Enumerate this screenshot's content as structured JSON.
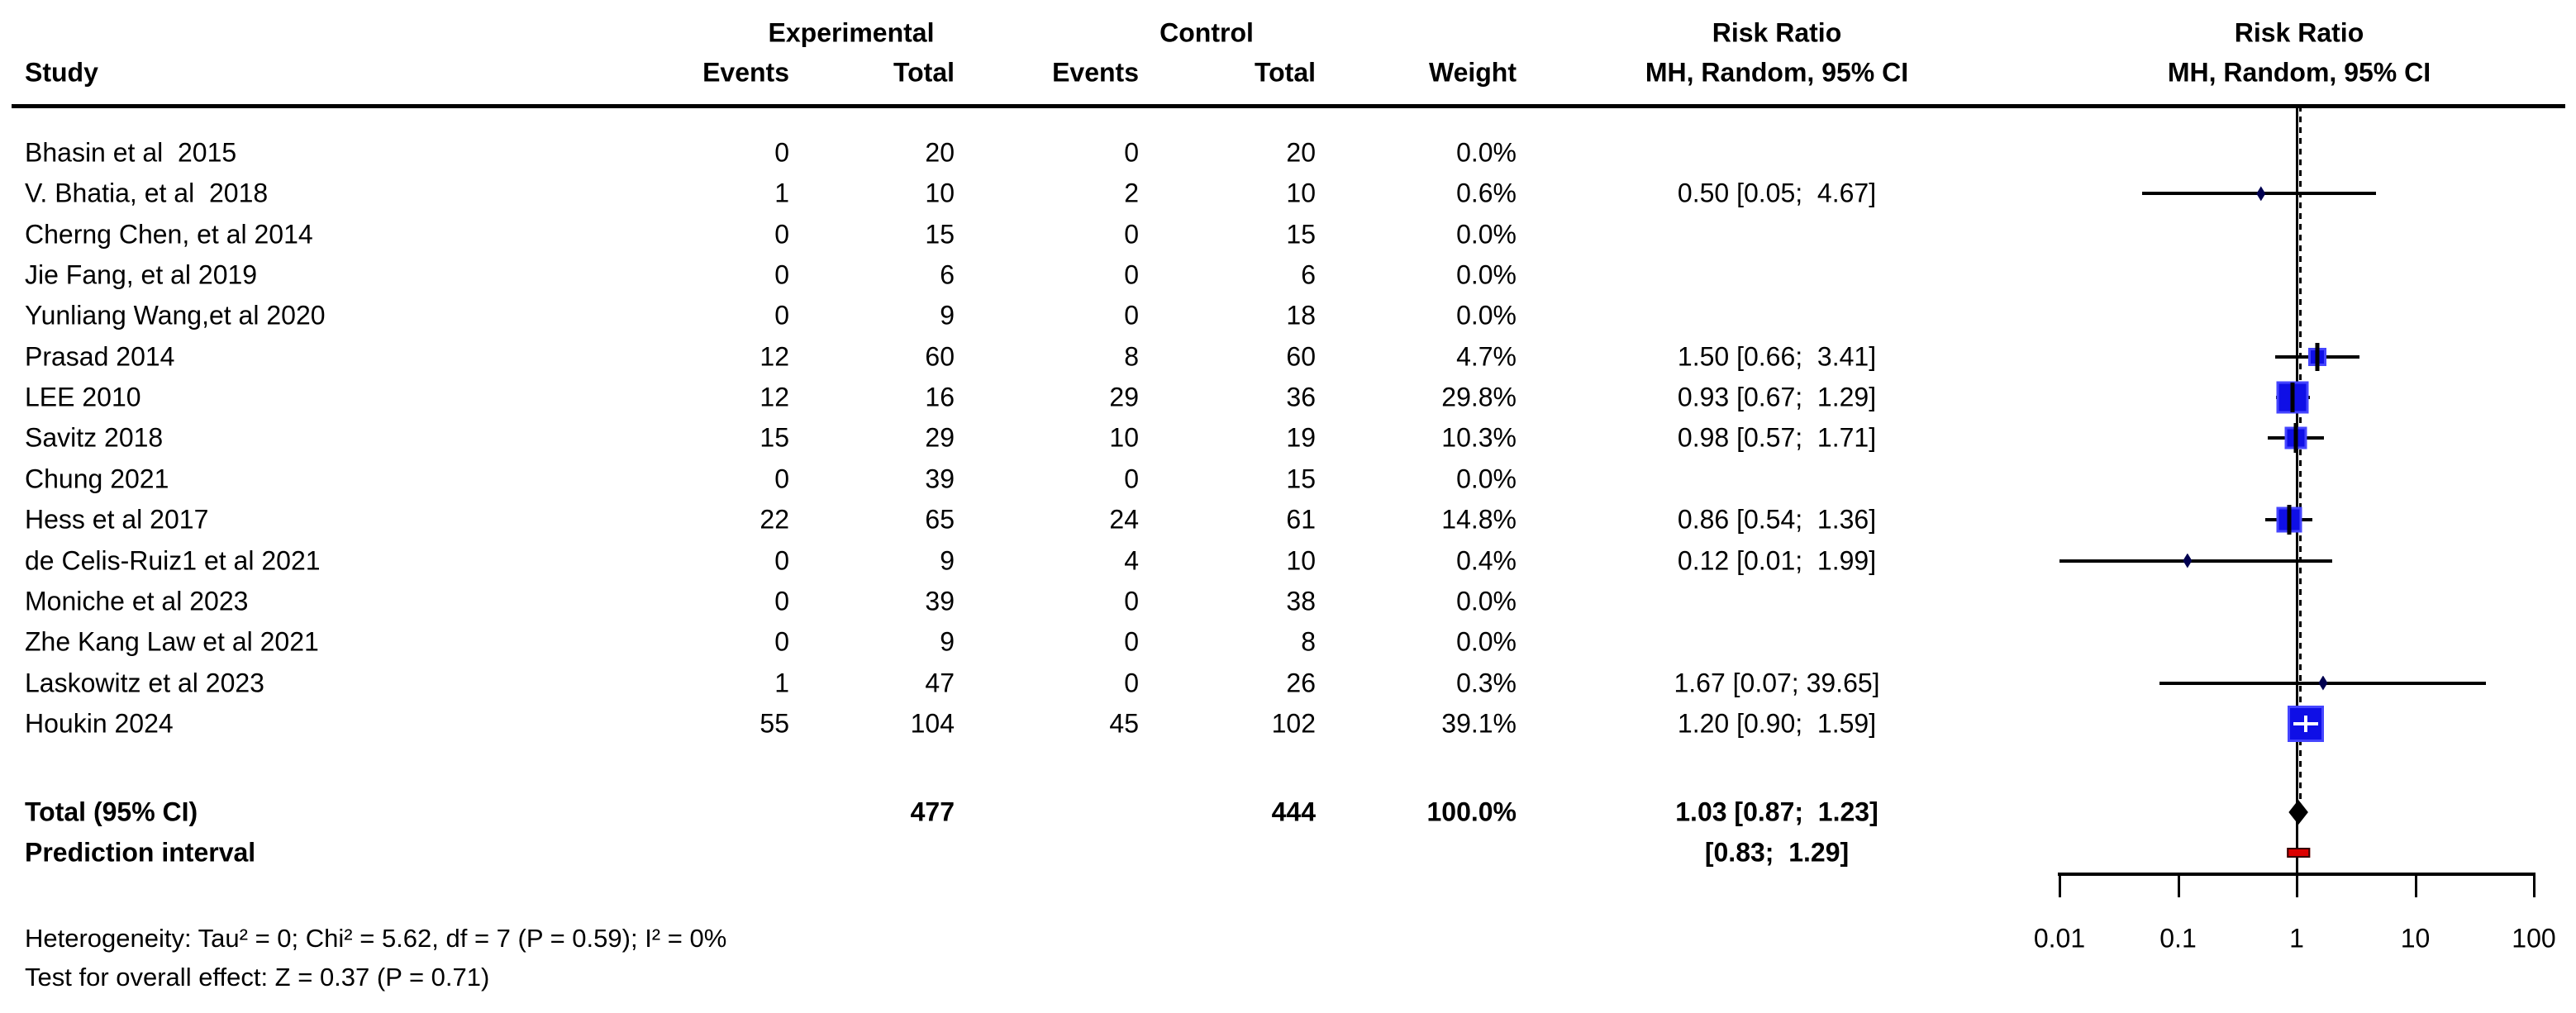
{
  "columns": {
    "study": "Study",
    "group_experimental": "Experimental",
    "group_control": "Control",
    "events": "Events",
    "total": "Total",
    "weight": "Weight",
    "risk_ratio_line1": "Risk Ratio",
    "risk_ratio_line2": "MH, Random, 95% CI"
  },
  "studies": [
    {
      "name": "Bhasin et al  2015",
      "exp_events": "0",
      "exp_total": "20",
      "ctrl_events": "0",
      "ctrl_total": "20",
      "weight": "0.0%",
      "weight_pct": 0.0,
      "rr_text": "",
      "rr": null,
      "ci_low": null,
      "ci_high": null
    },
    {
      "name": "V. Bhatia, et al  2018",
      "exp_events": "1",
      "exp_total": "10",
      "ctrl_events": "2",
      "ctrl_total": "10",
      "weight": "0.6%",
      "weight_pct": 0.6,
      "rr_text": "0.50 [0.05;  4.67]",
      "rr": 0.5,
      "ci_low": 0.05,
      "ci_high": 4.67
    },
    {
      "name": "Cherng Chen, et al 2014",
      "exp_events": "0",
      "exp_total": "15",
      "ctrl_events": "0",
      "ctrl_total": "15",
      "weight": "0.0%",
      "weight_pct": 0.0,
      "rr_text": "",
      "rr": null,
      "ci_low": null,
      "ci_high": null
    },
    {
      "name": "Jie Fang, et al 2019",
      "exp_events": "0",
      "exp_total": "6",
      "ctrl_events": "0",
      "ctrl_total": "6",
      "weight": "0.0%",
      "weight_pct": 0.0,
      "rr_text": "",
      "rr": null,
      "ci_low": null,
      "ci_high": null
    },
    {
      "name": "Yunliang Wang,et al 2020",
      "exp_events": "0",
      "exp_total": "9",
      "ctrl_events": "0",
      "ctrl_total": "18",
      "weight": "0.0%",
      "weight_pct": 0.0,
      "rr_text": "",
      "rr": null,
      "ci_low": null,
      "ci_high": null
    },
    {
      "name": "Prasad 2014",
      "exp_events": "12",
      "exp_total": "60",
      "ctrl_events": "8",
      "ctrl_total": "60",
      "weight": "4.7%",
      "weight_pct": 4.7,
      "rr_text": "1.50 [0.66;  3.41]",
      "rr": 1.5,
      "ci_low": 0.66,
      "ci_high": 3.41
    },
    {
      "name": "LEE 2010",
      "exp_events": "12",
      "exp_total": "16",
      "ctrl_events": "29",
      "ctrl_total": "36",
      "weight": "29.8%",
      "weight_pct": 29.8,
      "rr_text": "0.93 [0.67;  1.29]",
      "rr": 0.93,
      "ci_low": 0.67,
      "ci_high": 1.29
    },
    {
      "name": "Savitz 2018",
      "exp_events": "15",
      "exp_total": "29",
      "ctrl_events": "10",
      "ctrl_total": "19",
      "weight": "10.3%",
      "weight_pct": 10.3,
      "rr_text": "0.98 [0.57;  1.71]",
      "rr": 0.98,
      "ci_low": 0.57,
      "ci_high": 1.71
    },
    {
      "name": "Chung 2021",
      "exp_events": "0",
      "exp_total": "39",
      "ctrl_events": "0",
      "ctrl_total": "15",
      "weight": "0.0%",
      "weight_pct": 0.0,
      "rr_text": "",
      "rr": null,
      "ci_low": null,
      "ci_high": null
    },
    {
      "name": "Hess et al 2017",
      "exp_events": "22",
      "exp_total": "65",
      "ctrl_events": "24",
      "ctrl_total": "61",
      "weight": "14.8%",
      "weight_pct": 14.8,
      "rr_text": "0.86 [0.54;  1.36]",
      "rr": 0.86,
      "ci_low": 0.54,
      "ci_high": 1.36
    },
    {
      "name": "de Celis-Ruiz1 et al 2021",
      "exp_events": "0",
      "exp_total": "9",
      "ctrl_events": "4",
      "ctrl_total": "10",
      "weight": "0.4%",
      "weight_pct": 0.4,
      "rr_text": "0.12 [0.01;  1.99]",
      "rr": 0.12,
      "ci_low": 0.01,
      "ci_high": 1.99
    },
    {
      "name": "Moniche et al 2023",
      "exp_events": "0",
      "exp_total": "39",
      "ctrl_events": "0",
      "ctrl_total": "38",
      "weight": "0.0%",
      "weight_pct": 0.0,
      "rr_text": "",
      "rr": null,
      "ci_low": null,
      "ci_high": null
    },
    {
      "name": "Zhe Kang Law et al 2021",
      "exp_events": "0",
      "exp_total": "9",
      "ctrl_events": "0",
      "ctrl_total": "8",
      "weight": "0.0%",
      "weight_pct": 0.0,
      "rr_text": "",
      "rr": null,
      "ci_low": null,
      "ci_high": null
    },
    {
      "name": "Laskowitz et al 2023",
      "exp_events": "1",
      "exp_total": "47",
      "ctrl_events": "0",
      "ctrl_total": "26",
      "weight": "0.3%",
      "weight_pct": 0.3,
      "rr_text": "1.67 [0.07; 39.65]",
      "rr": 1.67,
      "ci_low": 0.07,
      "ci_high": 39.65
    },
    {
      "name": "Houkin 2024",
      "exp_events": "55",
      "exp_total": "104",
      "ctrl_events": "45",
      "ctrl_total": "102",
      "weight": "39.1%",
      "weight_pct": 39.1,
      "rr_text": "1.20 [0.90;  1.59]",
      "rr": 1.2,
      "ci_low": 0.9,
      "ci_high": 1.59
    }
  ],
  "total_row": {
    "label": "Total (95% CI)",
    "exp_total": "477",
    "ctrl_total": "444",
    "weight": "100.0%",
    "rr_text": "1.03 [0.87;  1.23]",
    "rr": 1.03,
    "ci_low": 0.87,
    "ci_high": 1.23
  },
  "prediction_row": {
    "label": "Prediction interval",
    "rr_text": "[0.83;  1.29]",
    "ci_low": 0.83,
    "ci_high": 1.29
  },
  "footer": {
    "heterogeneity": "Heterogeneity: Tau² = 0; Chi² = 5.62, df = 7 (P = 0.59); I² = 0%",
    "overall_effect": "Test for overall effect: Z = 0.37 (P = 0.71)"
  },
  "axis": {
    "scale": "log",
    "ref_line": 1,
    "ticks": [
      0.01,
      0.1,
      1,
      10,
      100
    ],
    "tick_labels": [
      "0.01",
      "0.1",
      "1",
      "10",
      "100"
    ]
  },
  "colors": {
    "square": "#0f0fe6",
    "square_border": "#4545ff",
    "tiny_marker": "#000050",
    "total_diamond": "#000000",
    "prediction_bar": "#dd0000",
    "prediction_border": "#330000",
    "line": "#000000"
  },
  "chart_data": {
    "type": "forest",
    "effect_measure": "Risk Ratio",
    "model": "MH, Random, 95% CI",
    "categories": [
      "Bhasin et al  2015",
      "V. Bhatia, et al  2018",
      "Cherng Chen, et al 2014",
      "Jie Fang, et al 2019",
      "Yunliang Wang,et al 2020",
      "Prasad 2014",
      "LEE 2010",
      "Savitz 2018",
      "Chung 2021",
      "Hess et al 2017",
      "de Celis-Ruiz1 et al 2021",
      "Moniche et al 2023",
      "Zhe Kang Law et al 2021",
      "Laskowitz et al 2023",
      "Houkin 2024"
    ],
    "series": [
      {
        "name": "risk_ratio",
        "values": [
          null,
          0.5,
          null,
          null,
          null,
          1.5,
          0.93,
          0.98,
          null,
          0.86,
          0.12,
          null,
          null,
          1.67,
          1.2
        ]
      },
      {
        "name": "ci_low",
        "values": [
          null,
          0.05,
          null,
          null,
          null,
          0.66,
          0.67,
          0.57,
          null,
          0.54,
          0.01,
          null,
          null,
          0.07,
          0.9
        ]
      },
      {
        "name": "ci_high",
        "values": [
          null,
          4.67,
          null,
          null,
          null,
          3.41,
          1.29,
          1.71,
          null,
          1.36,
          1.99,
          null,
          null,
          39.65,
          1.59
        ]
      },
      {
        "name": "weight_pct",
        "values": [
          0.0,
          0.6,
          0.0,
          0.0,
          0.0,
          4.7,
          29.8,
          10.3,
          0.0,
          14.8,
          0.4,
          0.0,
          0.0,
          0.3,
          39.1
        ]
      },
      {
        "name": "experimental_events",
        "values": [
          0,
          1,
          0,
          0,
          0,
          12,
          12,
          15,
          0,
          22,
          0,
          0,
          0,
          1,
          55
        ]
      },
      {
        "name": "experimental_total",
        "values": [
          20,
          10,
          15,
          6,
          9,
          60,
          16,
          29,
          39,
          65,
          9,
          39,
          9,
          47,
          104
        ]
      },
      {
        "name": "control_events",
        "values": [
          0,
          2,
          0,
          0,
          0,
          8,
          29,
          10,
          0,
          24,
          4,
          0,
          0,
          0,
          45
        ]
      },
      {
        "name": "control_total",
        "values": [
          20,
          10,
          15,
          6,
          18,
          60,
          36,
          19,
          15,
          61,
          10,
          38,
          8,
          26,
          102
        ]
      }
    ],
    "overall": {
      "label": "Total (95% CI)",
      "experimental_total": 477,
      "control_total": 444,
      "weight_pct": 100.0,
      "rr": 1.03,
      "ci_low": 0.87,
      "ci_high": 1.23
    },
    "prediction_interval": {
      "ci_low": 0.83,
      "ci_high": 1.29
    },
    "xaxis": {
      "scale": "log",
      "ticks": [
        0.01,
        0.1,
        1,
        10,
        100
      ],
      "range": [
        0.01,
        100
      ],
      "ref_line": 1
    },
    "heterogeneity": "Tau² = 0; Chi² = 5.62, df = 7 (P = 0.59); I² = 0%",
    "test_overall_effect": "Z = 0.37 (P = 0.71)",
    "legend": "none",
    "grid": false
  }
}
